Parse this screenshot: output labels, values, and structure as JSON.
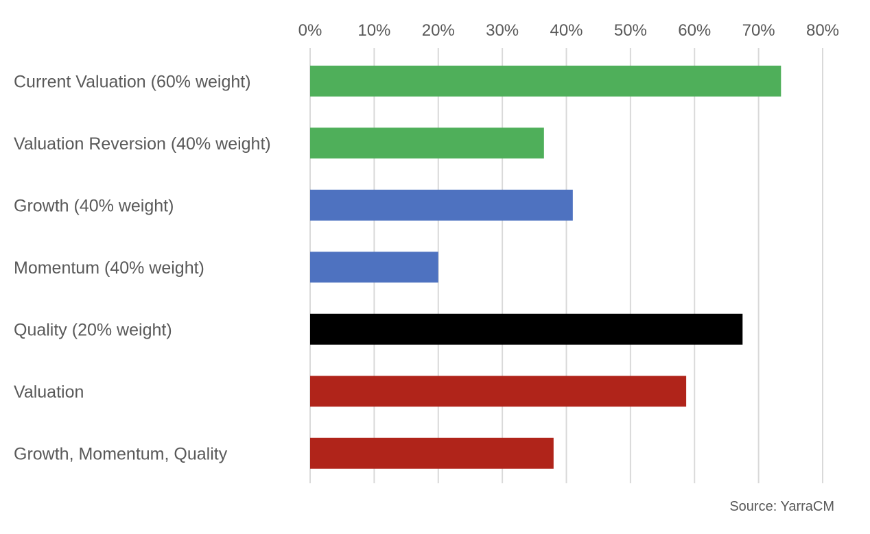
{
  "chart_data": {
    "type": "bar",
    "orientation": "horizontal",
    "title": "",
    "xlabel": "",
    "ylabel": "",
    "xlim": [
      0,
      80
    ],
    "x_axis_position": "top",
    "x_ticks": [
      0,
      10,
      20,
      30,
      40,
      50,
      60,
      70,
      80
    ],
    "x_tick_labels": [
      "0%",
      "10%",
      "20%",
      "30%",
      "40%",
      "50%",
      "60%",
      "70%",
      "80%"
    ],
    "grid": true,
    "legend": "none",
    "categories": [
      "Current Valuation (60% weight)",
      "Valuation Reversion (40% weight)",
      "Growth (40% weight)",
      "Momentum (40% weight)",
      "Quality (20% weight)",
      "Valuation",
      "Growth, Momentum, Quality"
    ],
    "values": [
      73.5,
      36.5,
      41,
      20,
      67.5,
      58.7,
      38
    ],
    "unit": "%",
    "colors": [
      "#4faf5a",
      "#4faf5a",
      "#4e72c0",
      "#4e72c0",
      "#000000",
      "#b0241a",
      "#b0241a"
    ],
    "source": "Source: YarraCM"
  }
}
